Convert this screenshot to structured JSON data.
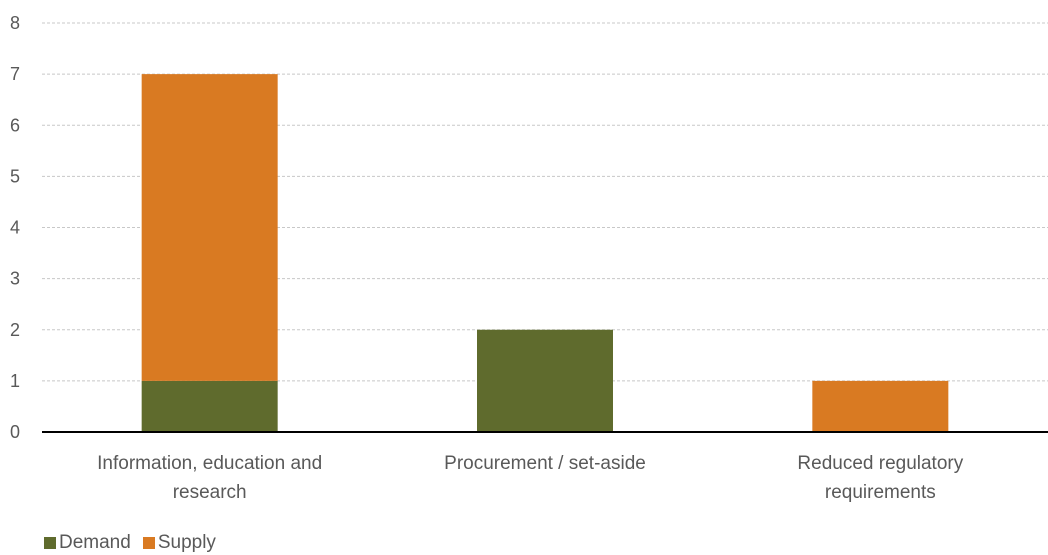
{
  "chart_data": {
    "type": "bar",
    "stacked": true,
    "categories": [
      [
        "Information, education and",
        "research"
      ],
      [
        "Procurement / set-aside"
      ],
      [
        "Reduced regulatory",
        "requirements"
      ]
    ],
    "series": [
      {
        "name": "Demand",
        "values": [
          1,
          2,
          0
        ],
        "color": "#5f6b2d"
      },
      {
        "name": "Supply",
        "values": [
          6,
          0,
          1
        ],
        "color": "#d97a22"
      }
    ],
    "ylim": [
      0,
      8
    ],
    "yticks": [
      0,
      1,
      2,
      3,
      4,
      5,
      6,
      7,
      8
    ],
    "grid": true,
    "legend_position": "bottom-left"
  }
}
